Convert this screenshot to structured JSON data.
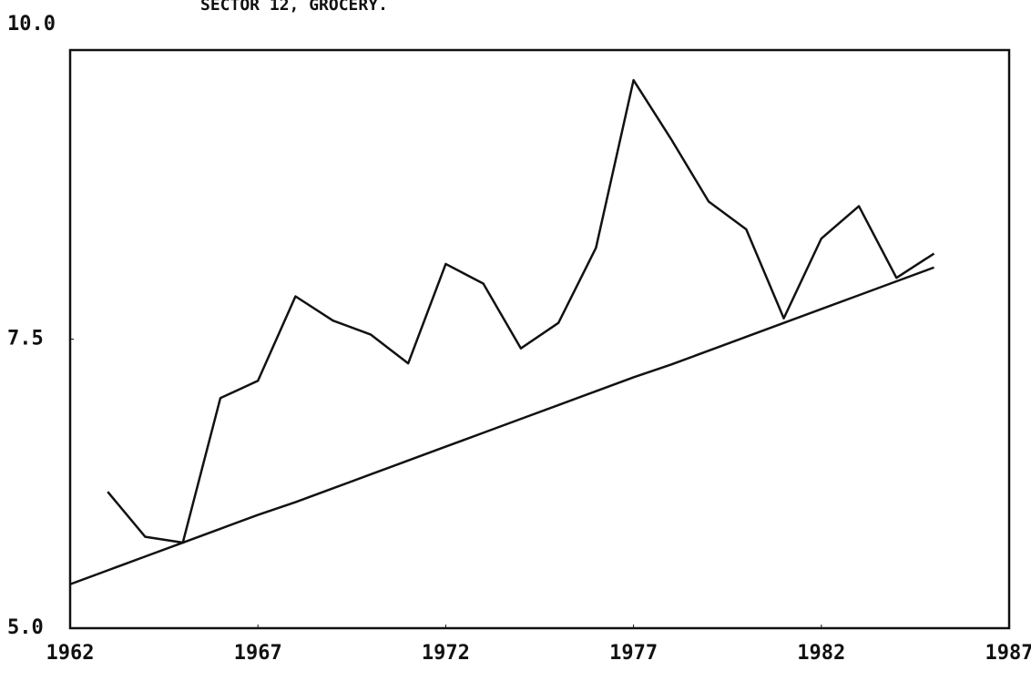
{
  "chart_data": {
    "type": "line",
    "title": "SECTOR 12, GROCERY.",
    "xlim": [
      1962,
      1987
    ],
    "xticks": [
      1962,
      1967,
      1972,
      1977,
      1982,
      1987
    ],
    "ylim": [
      5,
      10
    ],
    "yticks": [
      {
        "value": 5,
        "label": "5.0"
      },
      7.5,
      {
        "value": 10,
        "label": "10.0"
      }
    ],
    "grid": false,
    "series": [
      {
        "color": "#111111",
        "x": [
          1963,
          1964,
          1965,
          1966,
          1967,
          1968,
          1969,
          1970,
          1971,
          1972,
          1973,
          1974,
          1975,
          1976,
          1977,
          1978,
          1979,
          1980,
          1981,
          1982,
          1983,
          1984,
          1985
        ],
        "values": [
          6.18,
          5.79,
          5.74,
          6.99,
          7.14,
          7.87,
          7.66,
          7.54,
          7.29,
          8.15,
          7.98,
          7.42,
          7.64,
          8.29,
          9.74,
          9.23,
          8.69,
          8.45,
          7.68,
          8.37,
          8.65,
          8.03,
          8.24
        ]
      },
      {
        "color": "#111111",
        "x": [
          1962,
          1963,
          1964,
          1965,
          1966,
          1967,
          1968,
          1969,
          1970,
          1971,
          1972,
          1973,
          1974,
          1975,
          1976,
          1977,
          1978,
          1979,
          1980,
          1981,
          1982,
          1983,
          1984,
          1985
        ],
        "values": [
          5.38,
          5.5,
          5.62,
          5.74,
          5.86,
          5.98,
          6.09,
          6.21,
          6.33,
          6.45,
          6.57,
          6.69,
          6.81,
          6.93,
          7.05,
          7.17,
          7.28,
          7.4,
          7.52,
          7.64,
          7.76,
          7.88,
          8.0,
          8.12
        ]
      }
    ]
  }
}
